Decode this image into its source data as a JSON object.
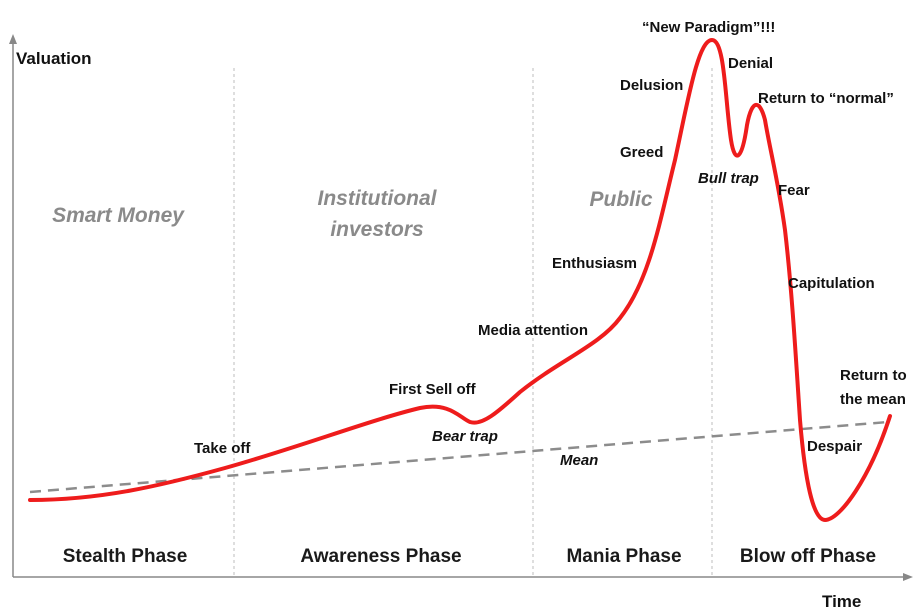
{
  "axes": {
    "y_title": "Valuation",
    "x_title": "Time"
  },
  "groups": [
    {
      "label": "Smart Money"
    },
    {
      "label_line1": "Institutional",
      "label_line2": "investors"
    },
    {
      "label": "Public"
    }
  ],
  "phases": [
    {
      "label": "Stealth Phase"
    },
    {
      "label": "Awareness Phase"
    },
    {
      "label": "Mania Phase"
    },
    {
      "label": "Blow off Phase"
    }
  ],
  "stages": {
    "take_off": "Take off",
    "first_sell_off": "First Sell off",
    "bear_trap": "Bear trap",
    "mean": "Mean",
    "media_attention": "Media attention",
    "enthusiasm": "Enthusiasm",
    "greed": "Greed",
    "delusion": "Delusion",
    "new_paradigm": "“New Paradigm”!!!",
    "denial": "Denial",
    "bull_trap": "Bull trap",
    "return_to_normal": "Return to “normal”",
    "fear": "Fear",
    "capitulation": "Capitulation",
    "despair": "Despair",
    "return_to_mean_line1": "Return to",
    "return_to_mean_line2": "the mean"
  },
  "colors": {
    "curve": "#ee1c1c",
    "mean_line": "#8c8c8c",
    "phase_divider": "#c8c8c8",
    "axis": "#888888"
  }
}
